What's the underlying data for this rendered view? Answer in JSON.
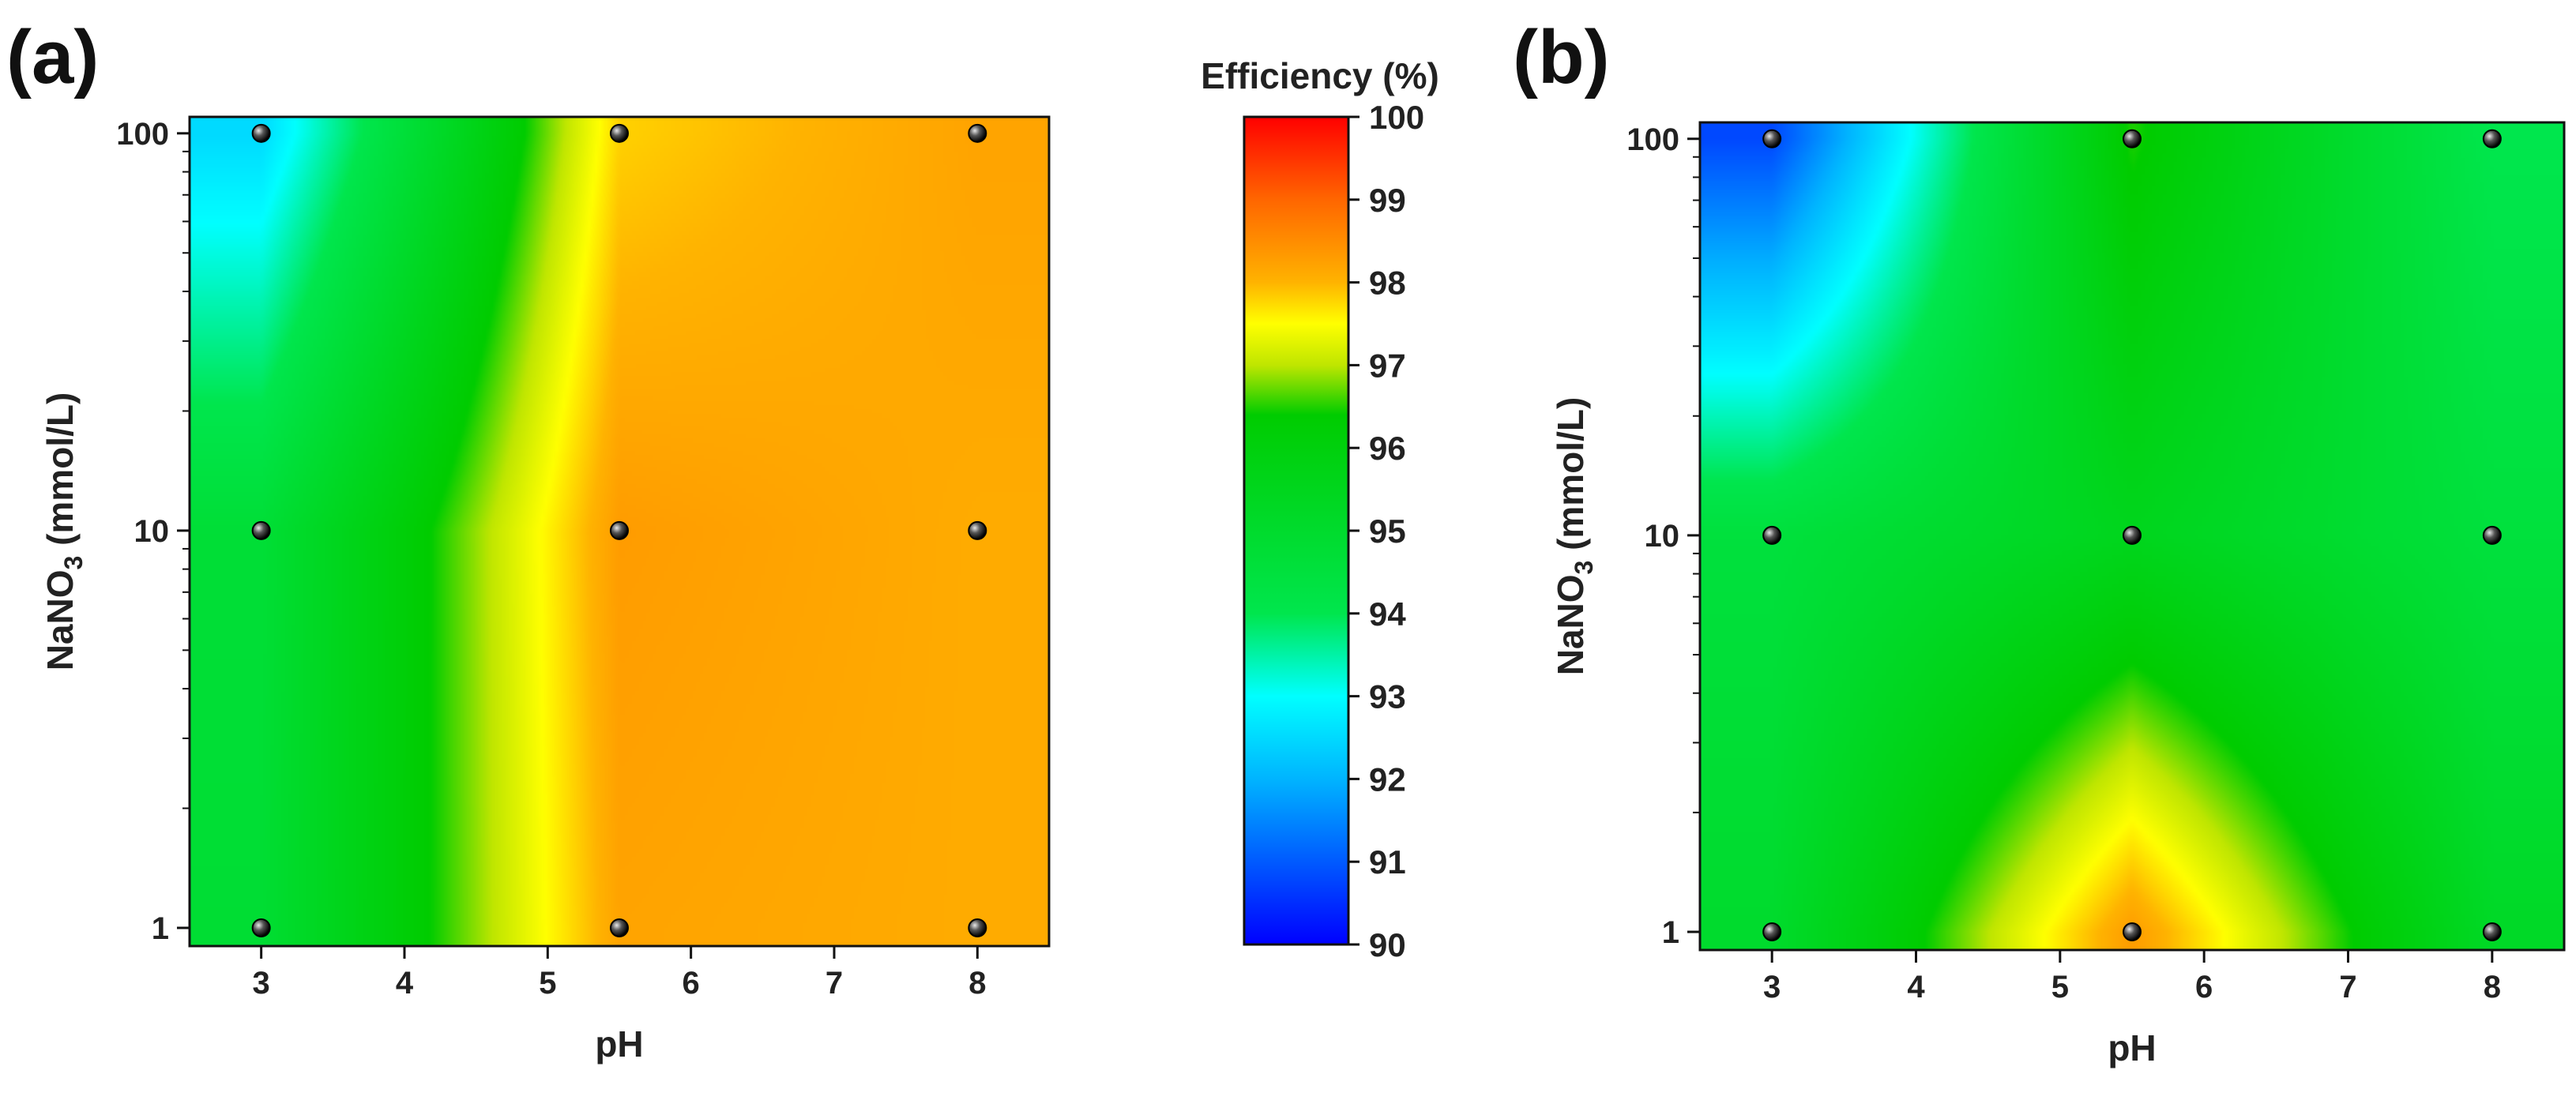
{
  "panels": {
    "a": {
      "label": "(a)"
    },
    "b": {
      "label": "(b)"
    }
  },
  "colorbar": {
    "title": "Efficiency (%)",
    "min": 90,
    "max": 100,
    "ticks": [
      90,
      91,
      92,
      93,
      94,
      95,
      96,
      97,
      98,
      99,
      100
    ],
    "colors": [
      {
        "v": 90,
        "c": "#0000ff"
      },
      {
        "v": 92,
        "c": "#00b4ff"
      },
      {
        "v": 93,
        "c": "#00ffff"
      },
      {
        "v": 94,
        "c": "#00e64d"
      },
      {
        "v": 96.4,
        "c": "#00cc00"
      },
      {
        "v": 97,
        "c": "#bfe600"
      },
      {
        "v": 97.5,
        "c": "#ffff00"
      },
      {
        "v": 98,
        "c": "#ffb300"
      },
      {
        "v": 99,
        "c": "#ff6600"
      },
      {
        "v": 100,
        "c": "#ff0000"
      }
    ]
  },
  "chart_data": [
    {
      "type": "heatmap",
      "panel": "(a)",
      "xlabel": "pH",
      "ylabel_parts": [
        "NaNO",
        "3",
        " (mmol/L)"
      ],
      "xlim": [
        2.5,
        8.5
      ],
      "x_ticks": [
        3,
        4,
        5,
        6,
        7,
        8
      ],
      "y_scale": "log",
      "ylim": [
        0.9,
        110
      ],
      "y_ticks": [
        1,
        10,
        100
      ],
      "x": [
        3,
        5.5,
        8
      ],
      "y": [
        1,
        10,
        100
      ],
      "z": [
        [
          94.8,
          98.2,
          98.1
        ],
        [
          94.7,
          98.3,
          98.1
        ],
        [
          92.5,
          97.8,
          98.2
        ]
      ],
      "points": [
        [
          3,
          1
        ],
        [
          5.5,
          1
        ],
        [
          8,
          1
        ],
        [
          3,
          10
        ],
        [
          5.5,
          10
        ],
        [
          8,
          10
        ],
        [
          3,
          100
        ],
        [
          5.5,
          100
        ],
        [
          8,
          100
        ]
      ]
    },
    {
      "type": "heatmap",
      "panel": "(b)",
      "xlabel": "pH",
      "ylabel_parts": [
        "NaNO",
        "3",
        " (mmol/L)"
      ],
      "xlim": [
        2.5,
        8.5
      ],
      "x_ticks": [
        3,
        4,
        5,
        6,
        7,
        8
      ],
      "y_scale": "log",
      "ylim": [
        0.9,
        110
      ],
      "y_ticks": [
        1,
        10,
        100
      ],
      "x": [
        3,
        5.5,
        8
      ],
      "y": [
        1,
        10,
        100
      ],
      "z": [
        [
          95.0,
          98.3,
          95.2
        ],
        [
          94.5,
          95.5,
          94.5
        ],
        [
          90.8,
          96.5,
          94.0
        ]
      ],
      "points": [
        [
          3,
          1
        ],
        [
          5.5,
          1
        ],
        [
          8,
          1
        ],
        [
          3,
          10
        ],
        [
          5.5,
          10
        ],
        [
          8,
          10
        ],
        [
          3,
          100
        ],
        [
          5.5,
          100
        ],
        [
          8,
          100
        ]
      ]
    }
  ]
}
